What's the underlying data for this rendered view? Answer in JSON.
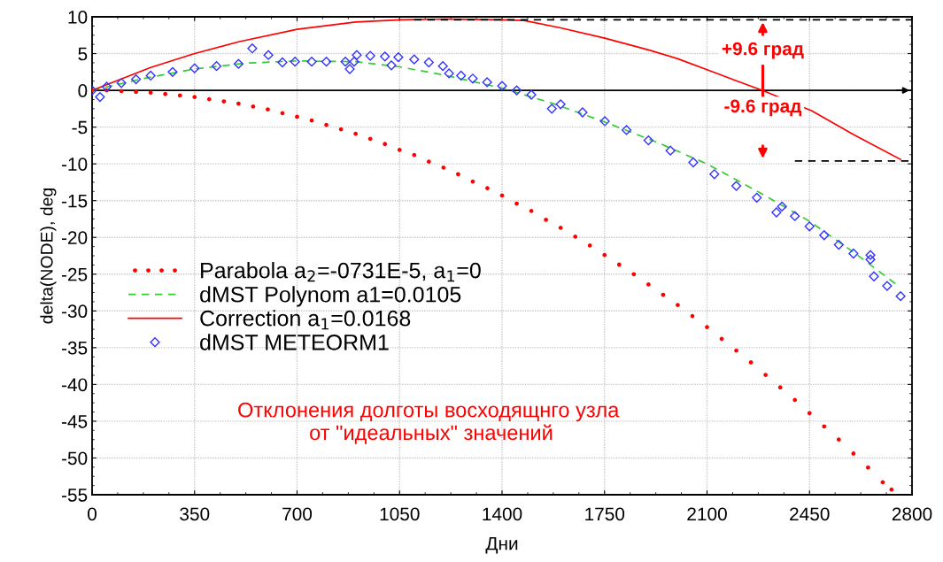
{
  "chart_data": {
    "type": "line",
    "xlabel": "Дни",
    "ylabel": "delta(NODE), deg",
    "xlim": [
      0,
      2800
    ],
    "xticks": [
      0,
      350,
      700,
      1050,
      1400,
      1750,
      2100,
      2450,
      2800
    ],
    "ylim": [
      -55,
      10
    ],
    "yticks": [
      10,
      5,
      0,
      -5,
      -10,
      -15,
      -20,
      -25,
      -30,
      -35,
      -40,
      -45,
      -50,
      -55
    ],
    "grid": true,
    "legend": "left",
    "series": [
      {
        "name": "Parabola a$_{2}$=-0731E-5, a$_{1}$=0",
        "type": "scatter",
        "marker": "circle",
        "color": "#ff0000",
        "x": [
          0,
          50,
          100,
          150,
          200,
          250,
          300,
          350,
          400,
          450,
          500,
          550,
          600,
          650,
          700,
          750,
          800,
          850,
          900,
          950,
          1000,
          1050,
          1100,
          1150,
          1200,
          1250,
          1300,
          1350,
          1400,
          1450,
          1500,
          1550,
          1600,
          1650,
          1700,
          1750,
          1800,
          1850,
          1900,
          1950,
          2000,
          2050,
          2100,
          2150,
          2200,
          2250,
          2300,
          2350,
          2400,
          2450,
          2500,
          2550,
          2600,
          2650,
          2700,
          2730
        ],
        "values": [
          0,
          0,
          -0.1,
          -0.2,
          -0.3,
          -0.5,
          -0.7,
          -0.9,
          -1.2,
          -1.5,
          -1.8,
          -2.2,
          -2.6,
          -3.1,
          -3.6,
          -4.1,
          -4.7,
          -5.3,
          -5.9,
          -6.6,
          -7.3,
          -8.1,
          -8.8,
          -9.7,
          -10.5,
          -11.4,
          -12.4,
          -13.3,
          -14.3,
          -15.4,
          -16.4,
          -17.6,
          -18.7,
          -19.9,
          -21.1,
          -22.4,
          -23.7,
          -25.0,
          -26.4,
          -27.8,
          -29.2,
          -30.7,
          -32.2,
          -33.8,
          -35.4,
          -37.0,
          -38.7,
          -40.4,
          -42.1,
          -43.9,
          -45.7,
          -47.5,
          -49.4,
          -51.3,
          -53.3,
          -54.3
        ]
      },
      {
        "name": "dMST Polynom a1=0.0105",
        "type": "line",
        "line_style": "dashed",
        "color": "#33cc33",
        "x": [
          0,
          175,
          350,
          525,
          700,
          900,
          1050,
          1200,
          1400,
          1575,
          1750,
          1925,
          2100,
          2275,
          2450,
          2600,
          2750
        ],
        "values": [
          0,
          1.6,
          2.9,
          3.7,
          4.0,
          3.9,
          3.2,
          2.1,
          0.3,
          -1.8,
          -4.3,
          -7.0,
          -10.0,
          -13.8,
          -17.8,
          -22.0,
          -26.5
        ]
      },
      {
        "name": "Correction a$_{1}$=0.0168",
        "type": "line",
        "line_style": "solid",
        "color": "#ff0000",
        "x": [
          0,
          200,
          350,
          500,
          700,
          900,
          1055,
          1200,
          1400,
          1475,
          1600,
          1751,
          1900,
          2000,
          2114,
          2200,
          2296,
          2458,
          2600,
          2761
        ],
        "values": [
          0,
          3.1,
          5.0,
          6.6,
          8.3,
          9.3,
          9.6,
          9.7,
          9.6,
          9.5,
          8.5,
          7.1,
          5.5,
          4.3,
          2.6,
          1.3,
          -0.1,
          -2.8,
          -6.0,
          -9.4
        ]
      },
      {
        "name": "dMST METEORM1",
        "type": "scatter",
        "marker": "diamond",
        "color": "#3333ff",
        "x": [
          0,
          27,
          50,
          100,
          150,
          200,
          275,
          350,
          425,
          500,
          547,
          602,
          650,
          693,
          750,
          800,
          865,
          880,
          895,
          904,
          950,
          1000,
          1022,
          1046,
          1100,
          1150,
          1198,
          1219,
          1260,
          1300,
          1349,
          1400,
          1450,
          1500,
          1570,
          1600,
          1675,
          1751,
          1825,
          1900,
          1975,
          2053,
          2125,
          2200,
          2270,
          2337,
          2356,
          2400,
          2450,
          2500,
          2550,
          2600,
          2658,
          2658,
          2670,
          2715,
          2761
        ],
        "values": [
          0,
          -0.9,
          0.5,
          1.0,
          1.5,
          2.0,
          2.5,
          3.0,
          3.3,
          3.6,
          5.7,
          4.8,
          3.8,
          3.9,
          3.9,
          3.9,
          3.9,
          2.9,
          3.9,
          4.8,
          4.7,
          4.6,
          3.4,
          4.5,
          4.2,
          3.8,
          3.3,
          2.3,
          2.0,
          1.6,
          1.1,
          0.6,
          0.0,
          -0.6,
          -2.5,
          -1.9,
          -3.0,
          -4.2,
          -5.4,
          -6.8,
          -8.2,
          -9.8,
          -11.4,
          -13.0,
          -14.6,
          -16.6,
          -15.8,
          -17.1,
          -18.5,
          -19.7,
          -21.0,
          -22.2,
          -23.0,
          -22.4,
          -25.3,
          -26.6,
          -28.0
        ]
      },
      {
        "type": "line",
        "line_style": "dashed",
        "color": "#000000",
        "x": [
          1100,
          2800
        ],
        "values": [
          9.6,
          9.6
        ]
      },
      {
        "type": "line",
        "line_style": "dashed",
        "color": "#000000",
        "x": [
          2400,
          2800
        ],
        "values": [
          -9.6,
          -9.6
        ]
      }
    ],
    "ref_lines": [
      {
        "axis": "y",
        "value": 0,
        "color": "#000000"
      }
    ],
    "annotations": [
      "+9.6 град",
      "-9.6 град",
      "Отклонения долготы восходящнго узла\n от \"идеальных\" значений"
    ]
  }
}
